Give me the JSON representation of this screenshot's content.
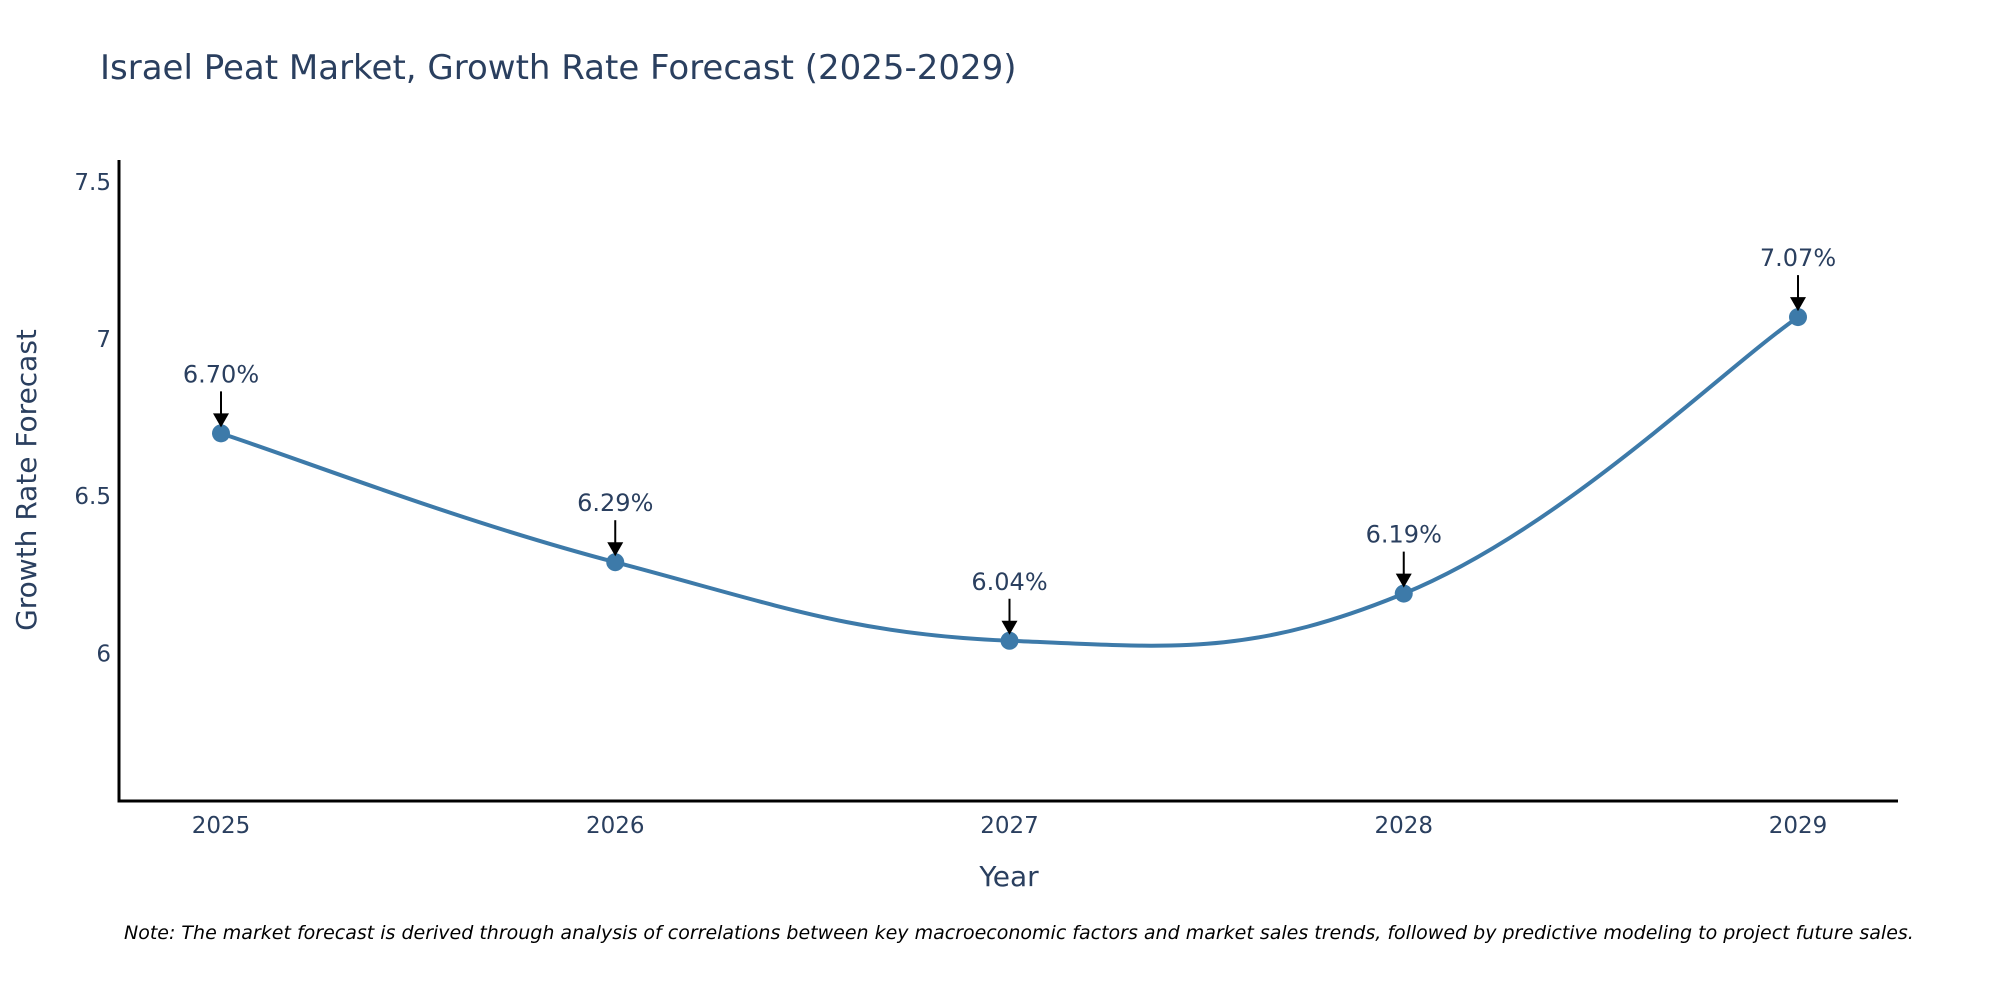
{
  "chart_data": {
    "type": "line",
    "title": "Israel Peat Market, Growth Rate Forecast (2025-2029)",
    "xlabel": "Year",
    "ylabel": "Growth Rate Forecast",
    "categories": [
      "2025",
      "2026",
      "2027",
      "2028",
      "2029"
    ],
    "series": [
      {
        "name": "Growth Rate Forecast",
        "values": [
          6.7,
          6.29,
          6.04,
          6.19,
          7.07
        ],
        "labels": [
          "6.70%",
          "6.29%",
          "6.04%",
          "6.19%",
          "7.07%"
        ],
        "color": "#3d7aa9"
      }
    ],
    "ylim": [
      5.53,
      7.57
    ],
    "yticks": [
      6,
      6.5,
      7,
      7.5
    ],
    "ytick_labels": [
      "6",
      "6.5",
      "7",
      "7.5"
    ],
    "grid": false,
    "note": "Note: The market forecast is derived through analysis of correlations between key macroeconomic factors and market sales trends, followed by predictive modeling to project future sales."
  }
}
